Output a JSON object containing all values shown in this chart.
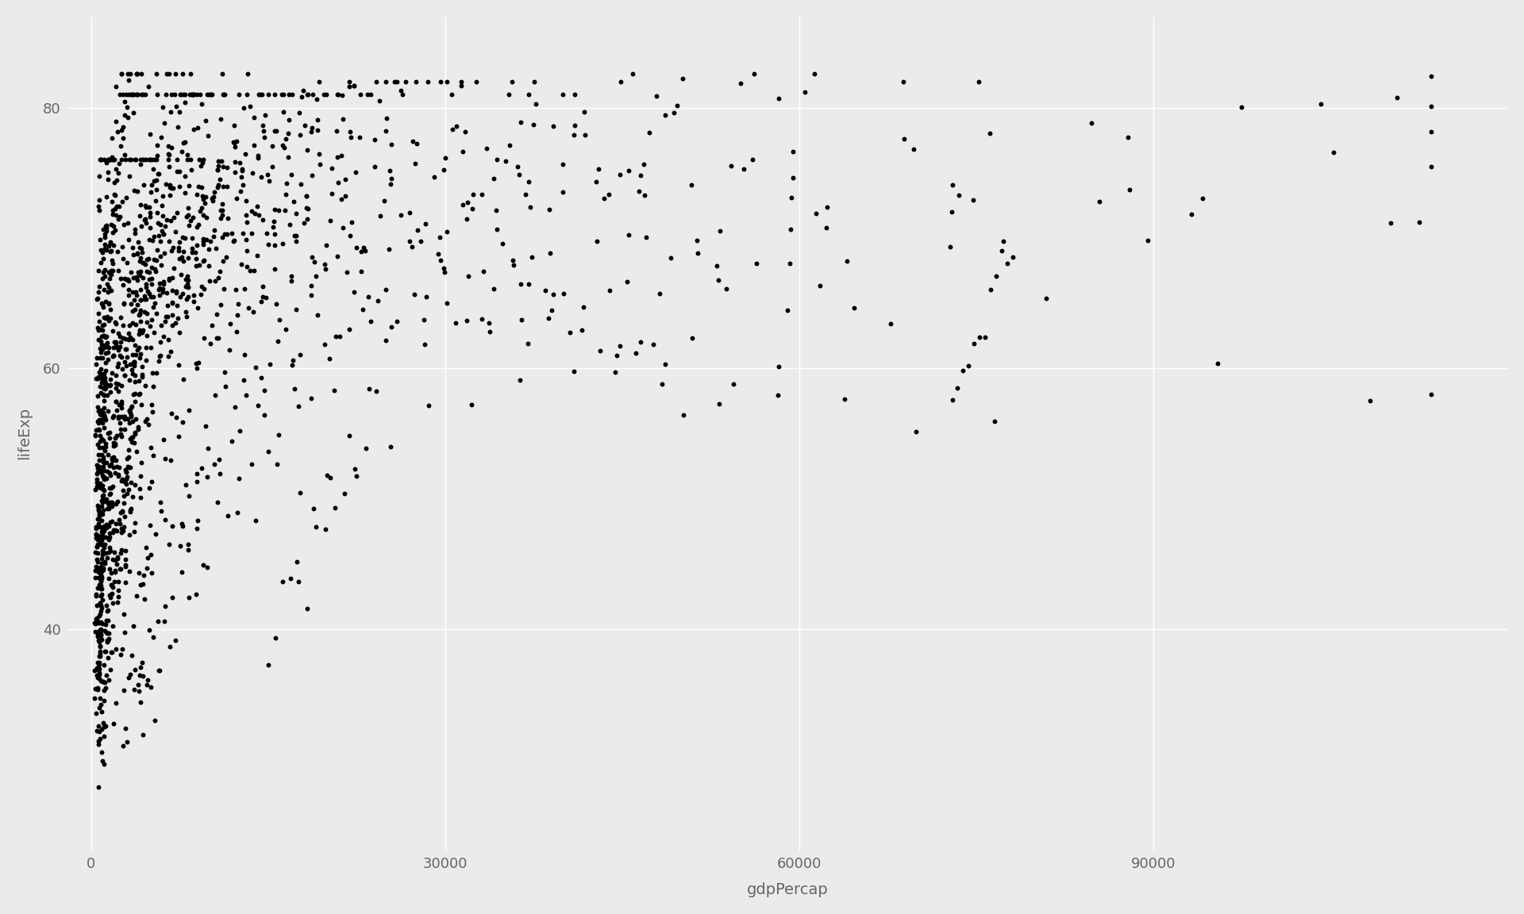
{
  "title": "",
  "xlabel": "gdpPercap",
  "ylabel": "lifeExp",
  "xlim": [
    -2000,
    120000
  ],
  "ylim": [
    23,
    87
  ],
  "yticks": [
    40,
    60,
    80
  ],
  "xticks": [
    0,
    30000,
    60000,
    90000
  ],
  "bg_color": "#EBEBEB",
  "panel_bg": "#EBEBEB",
  "grid_color": "#FFFFFF",
  "dot_color": "#000000",
  "dot_size": 18,
  "dot_alpha": 1.0,
  "axis_label_color": "#666666",
  "tick_label_color": "#666666",
  "tick_label_size": 13,
  "axis_label_size": 14
}
